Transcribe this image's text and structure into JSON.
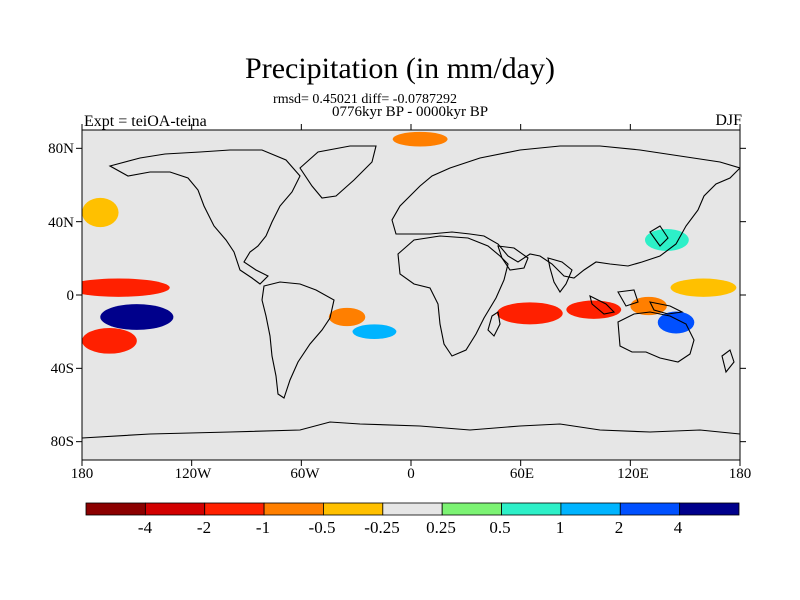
{
  "figure": {
    "title": "Precipitation (in mm/day)",
    "stats": "rmsd= 0.45021 diff= -0.0787292",
    "period": "0776kyr BP - 0000kyr BP",
    "left_label": "Expt = teiOA-teina",
    "right_label": "DJF"
  },
  "chart_data": {
    "type": "heatmap",
    "title": "Precipitation (in mm/day)",
    "variable": "Precipitation difference",
    "units": "mm/day",
    "season": "DJF",
    "x_ticks": [
      "180",
      "120W",
      "60W",
      "0",
      "60E",
      "120E",
      "180"
    ],
    "x_tick_values": [
      -180,
      -120,
      -60,
      0,
      60,
      120,
      180
    ],
    "y_ticks": [
      "80N",
      "40N",
      "0",
      "40S",
      "80S"
    ],
    "y_tick_values": [
      80,
      40,
      0,
      -40,
      -80
    ],
    "lon_range": [
      -180,
      180
    ],
    "lat_range": [
      -90,
      90
    ],
    "colorbar": {
      "levels": [
        "-4",
        "-2",
        "-1",
        "-0.5",
        "-0.25",
        "0.25",
        "0.5",
        "1",
        "2",
        "4"
      ],
      "level_values": [
        -4,
        -2,
        -1,
        -0.5,
        -0.25,
        0.25,
        0.5,
        1,
        2,
        4
      ],
      "colors": [
        "#8b0000",
        "#d20000",
        "#ff2000",
        "#ff7f00",
        "#ffc000",
        "#e6e6e6",
        "#7cf373",
        "#2df0c8",
        "#00b4ff",
        "#0050ff",
        "#00008b"
      ]
    },
    "anomalies": [
      {
        "lon": -150,
        "lat": -12,
        "rx": 20,
        "ry": 7,
        "value": 4,
        "region": "South Pacific"
      },
      {
        "lon": -160,
        "lat": 4,
        "rx": 28,
        "ry": 5,
        "value": -2,
        "region": "Equatorial Pacific"
      },
      {
        "lon": -165,
        "lat": -25,
        "rx": 15,
        "ry": 7,
        "value": -2,
        "region": "South Pacific"
      },
      {
        "lon": -170,
        "lat": 45,
        "rx": 10,
        "ry": 8,
        "value": -0.5,
        "region": "North Pacific"
      },
      {
        "lon": -35,
        "lat": -12,
        "rx": 10,
        "ry": 5,
        "value": -1,
        "region": "Brazil"
      },
      {
        "lon": -20,
        "lat": -20,
        "rx": 12,
        "ry": 4,
        "value": 1,
        "region": "South Atlantic"
      },
      {
        "lon": 5,
        "lat": 85,
        "rx": 15,
        "ry": 4,
        "value": -1,
        "region": "Arctic"
      },
      {
        "lon": 65,
        "lat": -10,
        "rx": 18,
        "ry": 6,
        "value": -2,
        "region": "Indian Ocean"
      },
      {
        "lon": 100,
        "lat": -8,
        "rx": 15,
        "ry": 5,
        "value": -2,
        "region": "Indian Ocean"
      },
      {
        "lon": 130,
        "lat": -6,
        "rx": 10,
        "ry": 5,
        "value": -1,
        "region": "Maritime Continent"
      },
      {
        "lon": 145,
        "lat": -15,
        "rx": 10,
        "ry": 6,
        "value": 2,
        "region": "Australia"
      },
      {
        "lon": 160,
        "lat": 4,
        "rx": 18,
        "ry": 5,
        "value": -0.5,
        "region": "West Pacific"
      },
      {
        "lon": 140,
        "lat": 30,
        "rx": 12,
        "ry": 6,
        "value": 0.5,
        "region": "Northwest Pacific"
      }
    ]
  }
}
